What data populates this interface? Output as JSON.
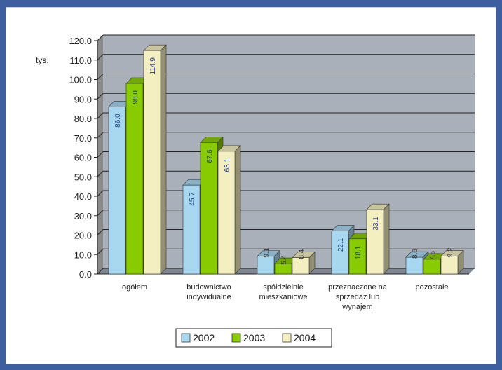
{
  "chart_data": {
    "type": "bar",
    "unit_label": "tys.",
    "categories": [
      [
        "ogółem"
      ],
      [
        "budownictwo",
        "indywidualne"
      ],
      [
        "spółdzielnie",
        "mieszkaniowe"
      ],
      [
        "przeznaczone na",
        "sprzedaż lub",
        "wynajem"
      ],
      [
        "pozostałe"
      ]
    ],
    "series": [
      {
        "name": "2002",
        "color": "#a8d8f0",
        "values": [
          86.0,
          45.7,
          9.1,
          22.1,
          8.6
        ]
      },
      {
        "name": "2003",
        "color": "#88cc00",
        "values": [
          98.0,
          67.6,
          5.4,
          18.1,
          7.6
        ]
      },
      {
        "name": "2004",
        "color": "#f4efc0",
        "values": [
          114.9,
          63.1,
          8.4,
          33.1,
          9.2
        ]
      }
    ],
    "data_labels": [
      [
        "86.0",
        "45.7",
        "9.1",
        "22.1",
        "8.6"
      ],
      [
        "98.0",
        "67.6",
        "5.4",
        "18.1",
        "7.6"
      ],
      [
        "114.9",
        "63.1",
        "8.4",
        "33.1",
        "9.2"
      ]
    ],
    "ylim": [
      0,
      120
    ],
    "yticks": [
      "0.0",
      "10.0",
      "20.0",
      "30.0",
      "40.0",
      "50.0",
      "60.0",
      "70.0",
      "80.0",
      "90.0",
      "100.0",
      "110.0",
      "120.0"
    ],
    "grid": true,
    "legend_position": "bottom"
  }
}
